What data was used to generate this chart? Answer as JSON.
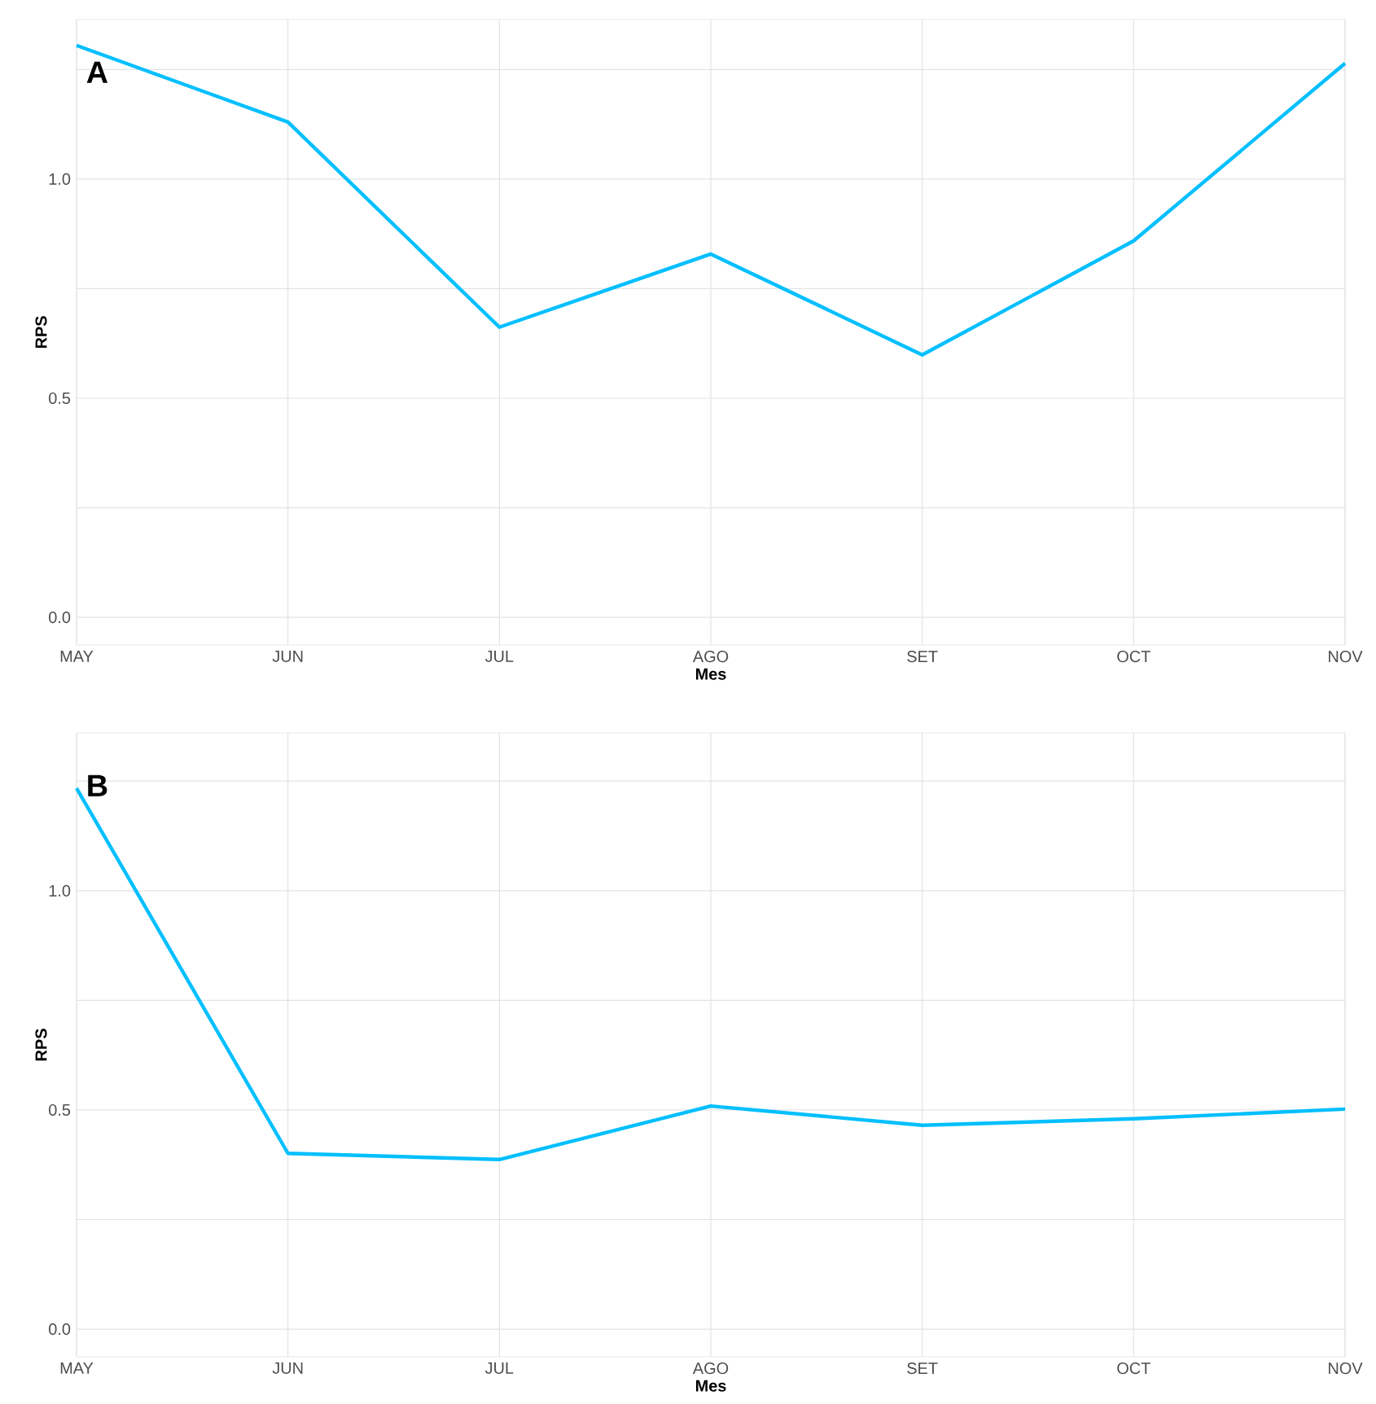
{
  "chart_data": [
    {
      "type": "line",
      "title": "A",
      "xlabel": "Mes",
      "ylabel": "RPS",
      "categories": [
        "MAY",
        "JUN",
        "JUL",
        "AGO",
        "SET",
        "OCT",
        "NOV"
      ],
      "values": [
        1.305,
        1.13,
        0.662,
        0.829,
        0.599,
        0.859,
        1.264
      ],
      "color": "#00bfff",
      "ylim": [
        -0.063,
        1.364
      ],
      "yticks": [
        {
          "value": 0,
          "label": "0.0"
        },
        {
          "value": 0.25,
          "label": null
        },
        {
          "value": 0.5,
          "label": "0.5"
        },
        {
          "value": 0.75,
          "label": null
        },
        {
          "value": 1.0,
          "label": "1.0"
        },
        {
          "value": 1.25,
          "label": null
        }
      ],
      "grid": true,
      "line_style": "solid"
    },
    {
      "type": "line",
      "title": "B",
      "xlabel": "Mes",
      "ylabel": "RPS",
      "categories": [
        "MAY",
        "JUN",
        "JUL",
        "AGO",
        "SET",
        "OCT",
        "NOV"
      ],
      "values": [
        1.234,
        0.401,
        0.387,
        0.509,
        0.465,
        0.48,
        0.502
      ],
      "color": "#00bfff",
      "ylim": [
        -0.063,
        1.36
      ],
      "yticks": [
        {
          "value": 0,
          "label": "0.0"
        },
        {
          "value": 0.25,
          "label": null
        },
        {
          "value": 0.5,
          "label": "0.5"
        },
        {
          "value": 0.75,
          "label": null
        },
        {
          "value": 1.0,
          "label": "1.0"
        },
        {
          "value": 1.25,
          "label": null
        }
      ],
      "grid": true,
      "line_style": "solid"
    }
  ]
}
